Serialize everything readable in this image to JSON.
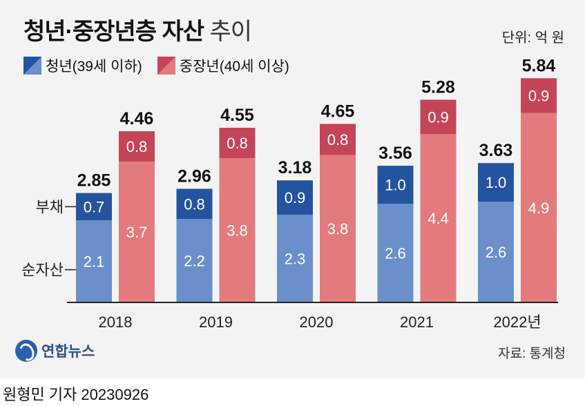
{
  "title": {
    "main": "청년·중장년층 자산",
    "sub": "추이"
  },
  "unit_label": "단위: 억 원",
  "legend": {
    "youth": "청년(39세 이하)",
    "middle": "중장년(40세 이상)"
  },
  "side_labels": {
    "debt": "부채",
    "net_assets": "순자산"
  },
  "source": "자료: 통계청",
  "logo_text": "연합뉴스",
  "byline": "원형민 기자  20230926",
  "colors": {
    "youth_net": "#6a8fcb",
    "youth_debt": "#24549f",
    "middle_net": "#e37b7e",
    "middle_debt": "#c44558",
    "text_dark": "#111111",
    "axis": "#222222"
  },
  "chart_data": {
    "type": "bar",
    "stacked": true,
    "categories": [
      "2018",
      "2019",
      "2020",
      "2021",
      "2022년"
    ],
    "ylim": [
      0,
      6
    ],
    "series": [
      {
        "name": "청년(39세 이하)",
        "net_assets": [
          "2.1",
          "2.2",
          "2.3",
          "2.6",
          "2.6"
        ],
        "debt": [
          "0.7",
          "0.8",
          "0.9",
          "1.0",
          "1.0"
        ],
        "total": [
          "2.85",
          "2.96",
          "3.18",
          "3.56",
          "3.63"
        ]
      },
      {
        "name": "중장년(40세 이상)",
        "net_assets": [
          "3.7",
          "3.8",
          "3.8",
          "4.4",
          "4.9"
        ],
        "debt": [
          "0.8",
          "0.8",
          "0.8",
          "0.9",
          "0.9"
        ],
        "total": [
          "4.46",
          "4.55",
          "4.65",
          "5.28",
          "5.84"
        ]
      }
    ]
  }
}
